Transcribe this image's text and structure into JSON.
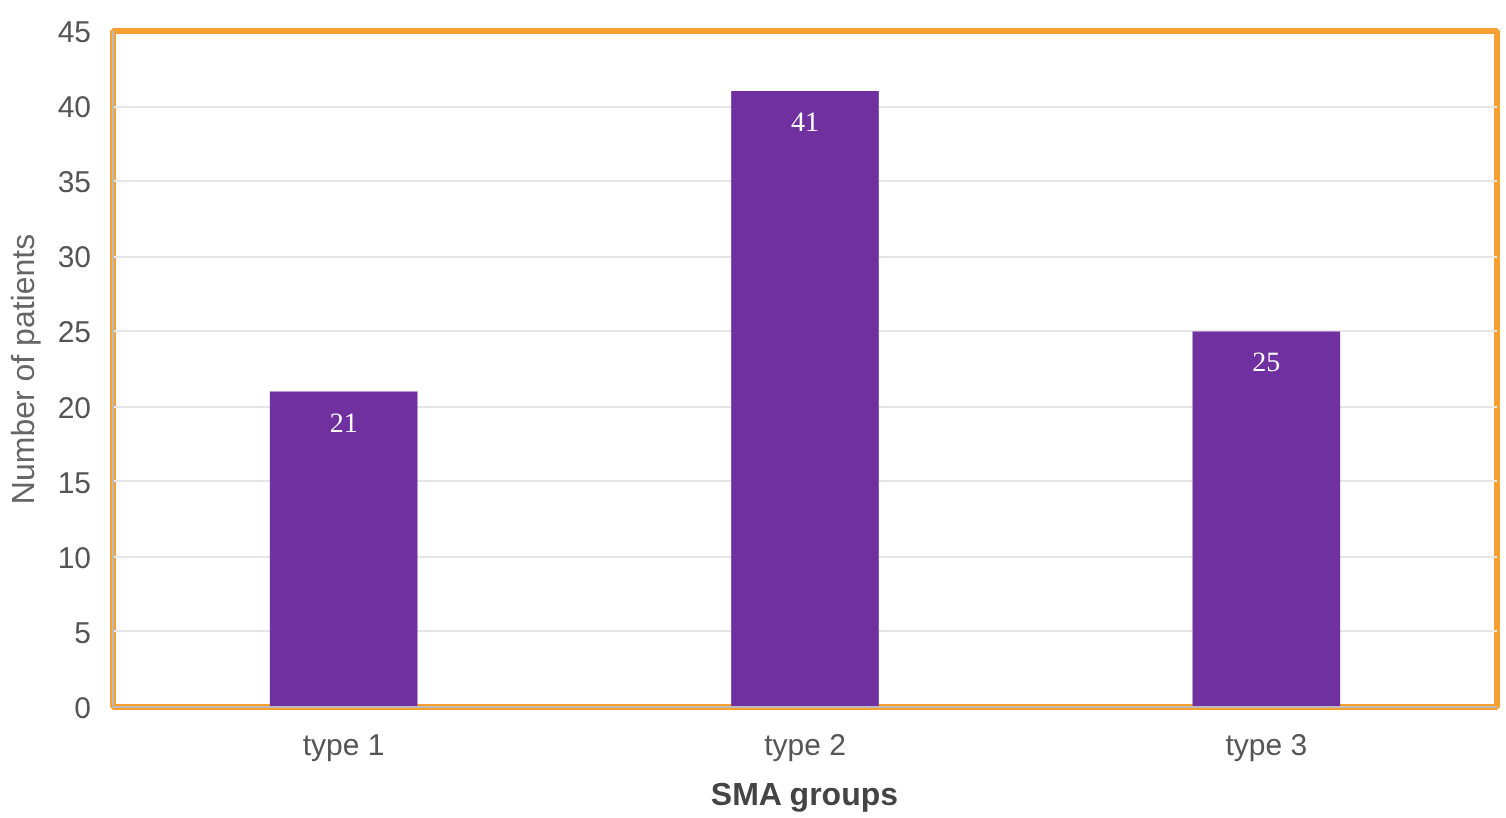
{
  "chart_data": {
    "type": "bar",
    "xlabel": "SMA groups",
    "ylabel": "Number of patients",
    "categories": [
      "type 1",
      "type 2",
      "type 3"
    ],
    "values": [
      21,
      41,
      25
    ],
    "color": "#7030a0",
    "ylim": [
      0,
      45
    ],
    "yticks": [
      0,
      5,
      10,
      15,
      20,
      25,
      30,
      35,
      40,
      45
    ],
    "grid": "y",
    "data_labels": true
  }
}
